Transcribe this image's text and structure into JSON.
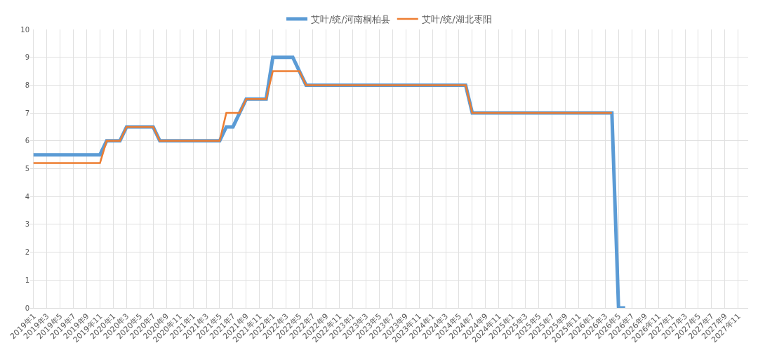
{
  "chart_data": {
    "type": "line",
    "categories": [
      "2019年1",
      null,
      "2019年3",
      null,
      "2019年5",
      null,
      "2019年7",
      null,
      "2019年9",
      null,
      "2019年11",
      null,
      "2020年1",
      null,
      "2020年3",
      null,
      "2020年5",
      null,
      "2020年7",
      null,
      "2020年9",
      null,
      "2020年11",
      null,
      "2021年1",
      null,
      "2021年3",
      null,
      "2021年5",
      null,
      "2021年7",
      null,
      "2021年9",
      null,
      "2021年11",
      null,
      "2022年1",
      null,
      "2022年3",
      null,
      "2022年5",
      null,
      "2022年7",
      null,
      "2022年9",
      null,
      "2022年11",
      null,
      "2023年1",
      null,
      "2023年3",
      null,
      "2023年5",
      null,
      "2023年7",
      null,
      "2023年9",
      null,
      "2023年11",
      null,
      "2024年1",
      null,
      "2024年3",
      null,
      "2024年5",
      null,
      "2024年7",
      null,
      "2024年9",
      null,
      "2024年11",
      null,
      "2025年1",
      null,
      "2025年3",
      null,
      "2025年5",
      null,
      "2025年7",
      null,
      "2025年9",
      null,
      "2025年11",
      null,
      "2026年1",
      null,
      "2026年3",
      null,
      "2026年5",
      null,
      "2026年7",
      null,
      "2026年9",
      null,
      "2026年11",
      null,
      "2027年1",
      null,
      "2027年3",
      null,
      "2027年5",
      null,
      "2027年7",
      null,
      "2027年9",
      null,
      "2027年11",
      null
    ],
    "series": [
      {
        "name": "艾叶/统/河南桐柏县",
        "color": "#5b9bd5",
        "values": [
          5.5,
          5.5,
          5.5,
          5.5,
          5.5,
          5.5,
          5.5,
          5.5,
          5.5,
          5.5,
          5.5,
          6,
          6,
          6,
          6.5,
          6.5,
          6.5,
          6.5,
          6.5,
          6,
          6,
          6,
          6,
          6,
          6,
          6,
          6,
          6,
          6,
          6.5,
          6.5,
          7,
          7.5,
          7.5,
          7.5,
          7.5,
          9,
          9,
          9,
          9,
          8.5,
          8,
          8,
          8,
          8,
          8,
          8,
          8,
          8,
          8,
          8,
          8,
          8,
          8,
          8,
          8,
          8,
          8,
          8,
          8,
          8,
          8,
          8,
          8,
          8,
          8,
          7,
          7,
          7,
          7,
          7,
          7,
          7,
          7,
          7,
          7,
          7,
          7,
          7,
          7,
          7,
          7,
          7,
          7,
          7,
          7,
          7,
          7,
          0,
          0,
          null,
          null,
          null,
          null,
          null,
          null,
          null,
          null,
          null,
          null,
          null,
          null,
          null,
          null,
          null,
          null,
          null,
          null
        ]
      },
      {
        "name": "艾叶/统/湖北枣阳",
        "color": "#ed7d31",
        "values": [
          5.2,
          5.2,
          5.2,
          5.2,
          5.2,
          5.2,
          5.2,
          5.2,
          5.2,
          5.2,
          5.2,
          6,
          6,
          6,
          6.5,
          6.5,
          6.5,
          6.5,
          6.5,
          6,
          6,
          6,
          6,
          6,
          6,
          6,
          6,
          6,
          6,
          7,
          7,
          7,
          7.5,
          7.5,
          7.5,
          7.5,
          8.5,
          8.5,
          8.5,
          8.5,
          8.5,
          8,
          8,
          8,
          8,
          8,
          8,
          8,
          8,
          8,
          8,
          8,
          8,
          8,
          8,
          8,
          8,
          8,
          8,
          8,
          8,
          8,
          8,
          8,
          8,
          8,
          7,
          7,
          7,
          7,
          7,
          7,
          7,
          7,
          7,
          7,
          7,
          7,
          7,
          7,
          7,
          7,
          7,
          7,
          7,
          7,
          7,
          7,
          null,
          null,
          null,
          null,
          null,
          null,
          null,
          null,
          null,
          null,
          null,
          null,
          null,
          null,
          null,
          null,
          null,
          null,
          null,
          null
        ]
      }
    ],
    "ylim": [
      0,
      10
    ],
    "yticks": [
      0,
      1,
      2,
      3,
      4,
      5,
      6,
      7,
      8,
      9,
      10
    ],
    "grid": true,
    "legend": "top",
    "marker": "none",
    "line_style": "solid"
  }
}
